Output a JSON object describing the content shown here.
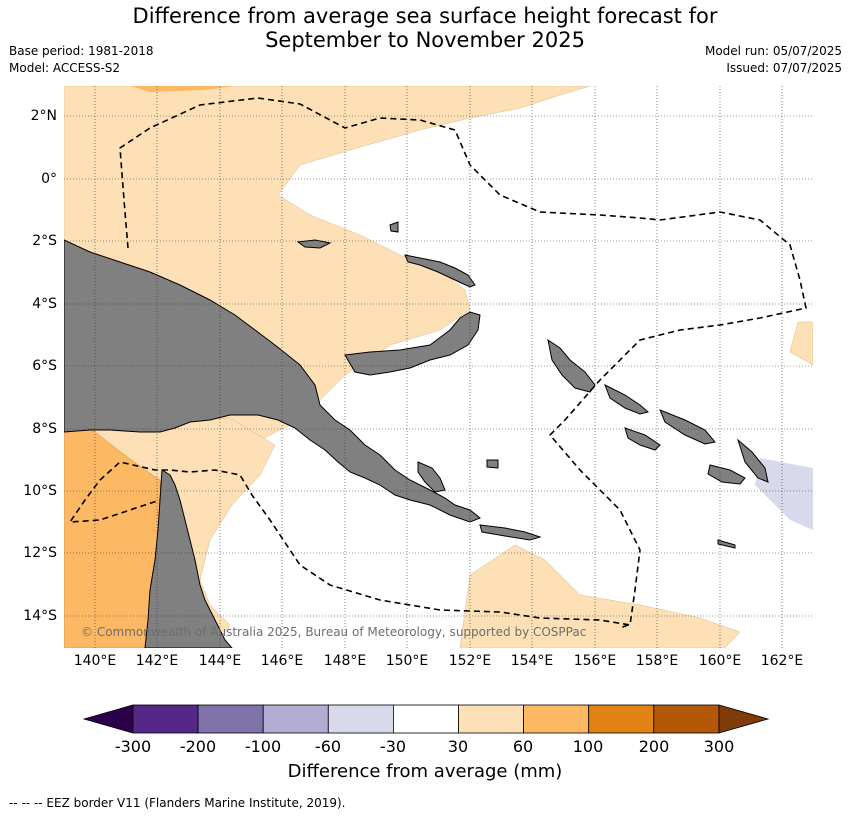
{
  "title_line1": "Difference from average sea surface height forecast for",
  "title_line2": "September to November 2025",
  "base_period": "Base period: 1981-2018",
  "model": "Model: ACCESS-S2",
  "model_run": "Model run: 05/07/2025",
  "issued": "Issued: 07/07/2025",
  "copyright": "© Commonwealth of Australia 2025, Bureau of Meteorology, supported by COSPPac",
  "lat_labels": [
    "2°N",
    "0°",
    "2°S",
    "4°S",
    "6°S",
    "8°S",
    "10°S",
    "12°S",
    "14°S"
  ],
  "lon_labels": [
    "140°E",
    "142°E",
    "144°E",
    "146°E",
    "148°E",
    "150°E",
    "152°E",
    "154°E",
    "156°E",
    "158°E",
    "160°E",
    "162°E"
  ],
  "colorbar": {
    "title": "Difference from average (mm)",
    "ticks": [
      "-300",
      "-200",
      "-100",
      "-60",
      "-30",
      "30",
      "60",
      "100",
      "200",
      "300"
    ],
    "colors": [
      "#2d004b",
      "#542788",
      "#8073ac",
      "#b2abd2",
      "#d8daeb",
      "#ffffff",
      "#fee0b6",
      "#fdb863",
      "#e08214",
      "#b35806",
      "#7f3b08"
    ]
  },
  "footnote": "--  --  -- EEZ border V11 (Flanders Marine Institute, 2019).",
  "colors": {
    "land": "#808080",
    "ocean_neutral": "#ffffff",
    "light_orange": "#fee0b6",
    "orange": "#fdb863",
    "light_purple": "#d8daeb"
  }
}
